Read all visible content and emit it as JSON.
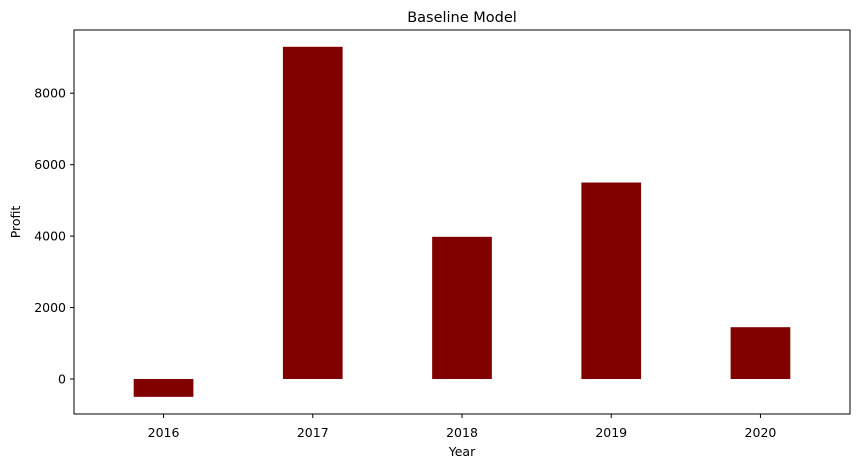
{
  "chart_data": {
    "type": "bar",
    "title": "Baseline Model",
    "xlabel": "Year",
    "ylabel": "Profit",
    "categories": [
      "2016",
      "2017",
      "2018",
      "2019",
      "2020"
    ],
    "values": [
      -500,
      9300,
      3980,
      5500,
      1450
    ],
    "ylim": [
      -980,
      9770
    ],
    "yticks": [
      0,
      2000,
      4000,
      6000,
      8000
    ],
    "ytick_labels": [
      "0",
      "2000",
      "4000",
      "6000",
      "8000"
    ],
    "bar_color": "#800000",
    "grid": false,
    "legend": "none"
  }
}
